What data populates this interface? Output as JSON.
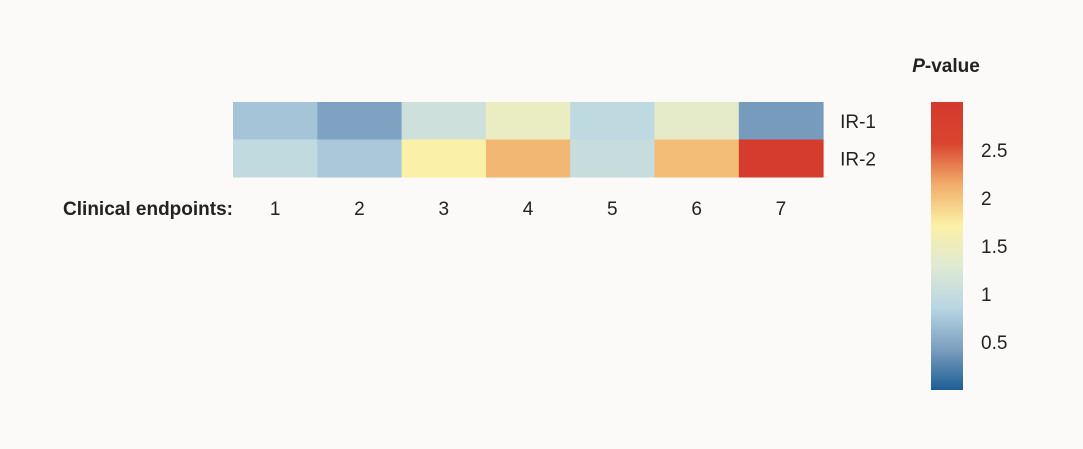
{
  "chart_data": {
    "type": "heatmap",
    "row_axis_label": "Clinical endpoints:",
    "columns": [
      "1",
      "2",
      "3",
      "4",
      "5",
      "6",
      "7"
    ],
    "rows": [
      {
        "name": "IR-1",
        "values": [
          0.72,
          0.45,
          1.08,
          1.45,
          0.92,
          1.38,
          0.4
        ]
      },
      {
        "name": "IR-2",
        "values": [
          0.95,
          0.75,
          1.7,
          2.08,
          1.02,
          2.05,
          2.9
        ]
      }
    ],
    "legend": {
      "title_italic": "P",
      "title_rest": "-value",
      "min": 0,
      "max": 3,
      "ticks": [
        {
          "value": 0.5,
          "label": "0.5"
        },
        {
          "value": 1,
          "label": "1"
        },
        {
          "value": 1.5,
          "label": "1.5"
        },
        {
          "value": 2,
          "label": "2"
        },
        {
          "value": 2.5,
          "label": "2.5"
        }
      ],
      "colors": [
        "#1d5e95",
        "#7c9fc0",
        "#b9d6e3",
        "#dfe9d3",
        "#fbf0a6",
        "#f1ad6a",
        "#d9452f",
        "#d4392e"
      ],
      "position": "right"
    }
  }
}
